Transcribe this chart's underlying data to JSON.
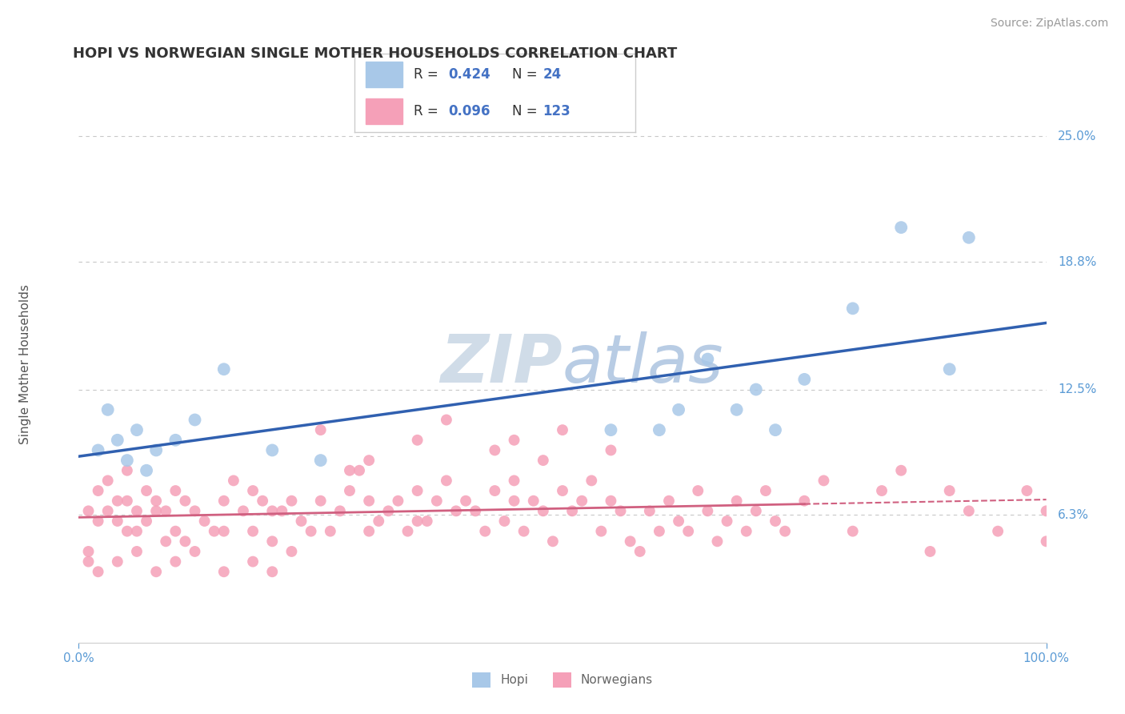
{
  "title": "HOPI VS NORWEGIAN SINGLE MOTHER HOUSEHOLDS CORRELATION CHART",
  "source": "Source: ZipAtlas.com",
  "ylabel": "Single Mother Households",
  "xlim": [
    0.0,
    100.0
  ],
  "ylim": [
    0.0,
    27.5
  ],
  "yticks": [
    6.3,
    12.5,
    18.8,
    25.0
  ],
  "background_color": "#ffffff",
  "grid_color": "#c8c8c8",
  "hopi_color": "#A8C8E8",
  "norwegian_color": "#F5A0B8",
  "hopi_line_color": "#3060B0",
  "norwegian_line_color": "#D06080",
  "watermark_color": "#d0dce8",
  "tick_color": "#5B9BD5",
  "hopi_scatter_x": [
    2,
    3,
    4,
    5,
    6,
    7,
    8,
    10,
    12,
    15,
    20,
    25,
    55,
    60,
    62,
    65,
    68,
    70,
    72,
    75,
    80,
    85,
    90,
    92
  ],
  "hopi_scatter_y": [
    9.5,
    11.5,
    10.0,
    9.0,
    10.5,
    8.5,
    9.5,
    10.0,
    11.0,
    13.5,
    9.5,
    9.0,
    10.5,
    10.5,
    11.5,
    14.0,
    11.5,
    12.5,
    10.5,
    13.0,
    16.5,
    20.5,
    13.5,
    20.0
  ],
  "norw_scatter_x": [
    1,
    2,
    2,
    3,
    3,
    4,
    4,
    5,
    5,
    5,
    6,
    6,
    7,
    7,
    8,
    8,
    9,
    9,
    10,
    10,
    11,
    11,
    12,
    13,
    14,
    15,
    15,
    16,
    17,
    18,
    18,
    19,
    20,
    20,
    21,
    22,
    23,
    24,
    25,
    26,
    27,
    28,
    29,
    30,
    30,
    31,
    32,
    33,
    34,
    35,
    35,
    36,
    37,
    38,
    39,
    40,
    41,
    42,
    43,
    44,
    45,
    45,
    46,
    47,
    48,
    49,
    50,
    51,
    52,
    53,
    54,
    55,
    56,
    57,
    58,
    59,
    60,
    61,
    62,
    63,
    64,
    65,
    66,
    67,
    68,
    69,
    70,
    71,
    72,
    73,
    75,
    77,
    80,
    83,
    85,
    88,
    90,
    92,
    95,
    98,
    100,
    100,
    55,
    50,
    48,
    45,
    43,
    38,
    35,
    30,
    28,
    25,
    22,
    20,
    18,
    15,
    12,
    10,
    8,
    6,
    4,
    2,
    1,
    1
  ],
  "norw_scatter_y": [
    6.5,
    6.0,
    7.5,
    6.5,
    8.0,
    7.0,
    6.0,
    5.5,
    7.0,
    8.5,
    6.5,
    5.5,
    7.5,
    6.0,
    6.5,
    7.0,
    5.0,
    6.5,
    5.5,
    7.5,
    7.0,
    5.0,
    6.5,
    6.0,
    5.5,
    7.0,
    5.5,
    8.0,
    6.5,
    5.5,
    7.5,
    7.0,
    6.5,
    5.0,
    6.5,
    7.0,
    6.0,
    5.5,
    7.0,
    5.5,
    6.5,
    7.5,
    8.5,
    7.0,
    5.5,
    6.0,
    6.5,
    7.0,
    5.5,
    7.5,
    6.0,
    6.0,
    7.0,
    8.0,
    6.5,
    7.0,
    6.5,
    5.5,
    7.5,
    6.0,
    7.0,
    8.0,
    5.5,
    7.0,
    6.5,
    5.0,
    7.5,
    6.5,
    7.0,
    8.0,
    5.5,
    7.0,
    6.5,
    5.0,
    4.5,
    6.5,
    5.5,
    7.0,
    6.0,
    5.5,
    7.5,
    6.5,
    5.0,
    6.0,
    7.0,
    5.5,
    6.5,
    7.5,
    6.0,
    5.5,
    7.0,
    8.0,
    5.5,
    7.5,
    8.5,
    4.5,
    7.5,
    6.5,
    5.5,
    7.5,
    5.0,
    6.5,
    9.5,
    10.5,
    9.0,
    10.0,
    9.5,
    11.0,
    10.0,
    9.0,
    8.5,
    10.5,
    4.5,
    3.5,
    4.0,
    3.5,
    4.5,
    4.0,
    3.5,
    4.5,
    4.0,
    3.5,
    4.0,
    4.5
  ],
  "title_fontsize": 13,
  "axis_label_fontsize": 11,
  "tick_fontsize": 11,
  "source_fontsize": 10
}
